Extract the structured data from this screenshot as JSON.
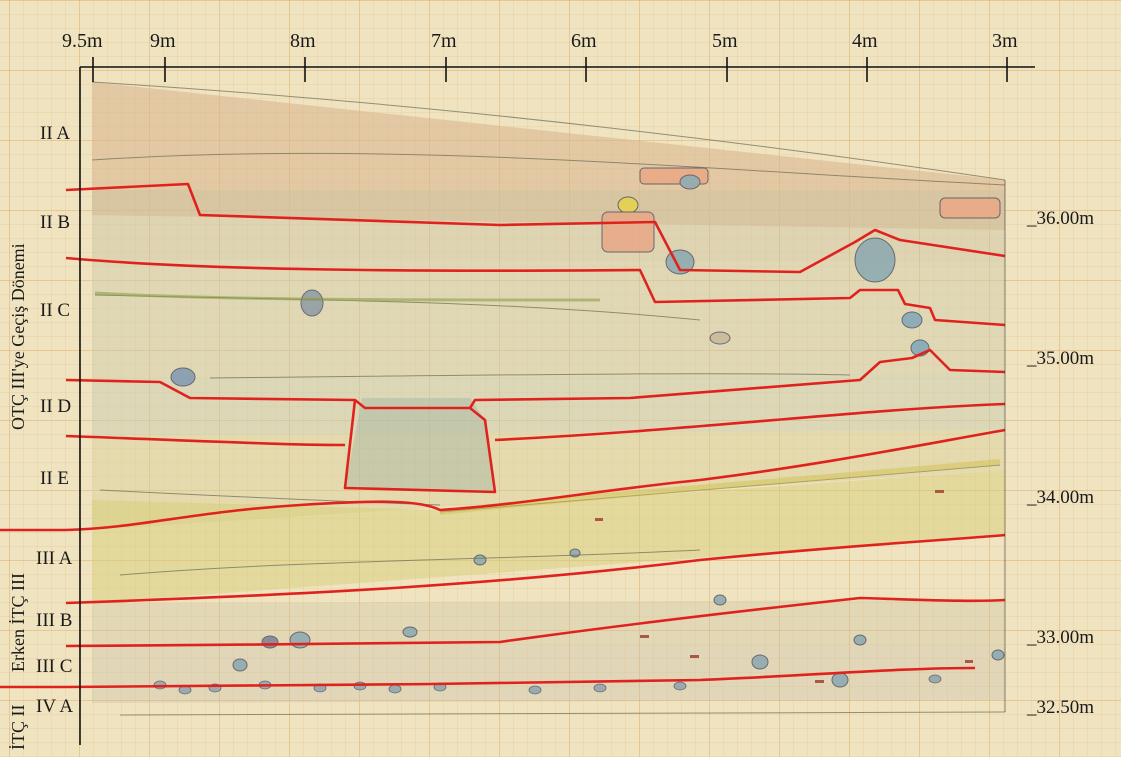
{
  "x_axis": {
    "ticks": [
      "9.5m",
      "9m",
      "8m",
      "7m",
      "6m",
      "5m",
      "4m",
      "3m"
    ]
  },
  "layers": [
    "II A",
    "II B",
    "II C",
    "II D",
    "II E",
    "III A",
    "III B",
    "III C",
    "IV A"
  ],
  "elevations": [
    "_36.00m",
    "_35.00m",
    "_34.00m",
    "_33.00m",
    "_32.50m"
  ],
  "periods": [
    "OTÇ III'ye Geçiş Dönemi",
    "Erken İTÇ III",
    "İTÇ II"
  ],
  "colors": {
    "boundary": "#e0221f",
    "paper": "#efe3c0",
    "grid": "#d69646",
    "ink": "#1a1a1a"
  }
}
